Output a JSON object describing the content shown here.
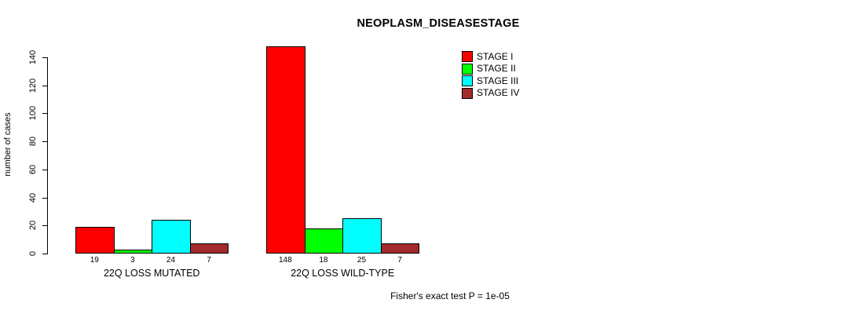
{
  "title": "NEOPLASM_DISEASESTAGE",
  "footer_note": "Fisher's exact test P = 1e-05",
  "chart_data": {
    "type": "bar",
    "title": "NEOPLASM_DISEASESTAGE",
    "xlabel": "",
    "ylabel": "number of cases",
    "ylim": [
      0,
      148
    ],
    "yticks": [
      0,
      20,
      40,
      60,
      80,
      100,
      120,
      140
    ],
    "grid": false,
    "legend_position": "top-right",
    "categories": [
      "22Q LOSS MUTATED",
      "22Q LOSS WILD-TYPE"
    ],
    "series": [
      {
        "name": "STAGE I",
        "color": "#FF0000",
        "values": [
          19,
          148
        ]
      },
      {
        "name": "STAGE II",
        "color": "#00FF00",
        "values": [
          3,
          18
        ]
      },
      {
        "name": "STAGE III",
        "color": "#00FFFF",
        "values": [
          24,
          25
        ]
      },
      {
        "name": "STAGE IV",
        "color": "#A52A2A",
        "values": [
          7,
          7
        ]
      }
    ],
    "bar_value_labels": [
      [
        19,
        3,
        24,
        7
      ],
      [
        148,
        18,
        25,
        7
      ]
    ],
    "annotation": "Fisher's exact test P = 1e-05"
  }
}
